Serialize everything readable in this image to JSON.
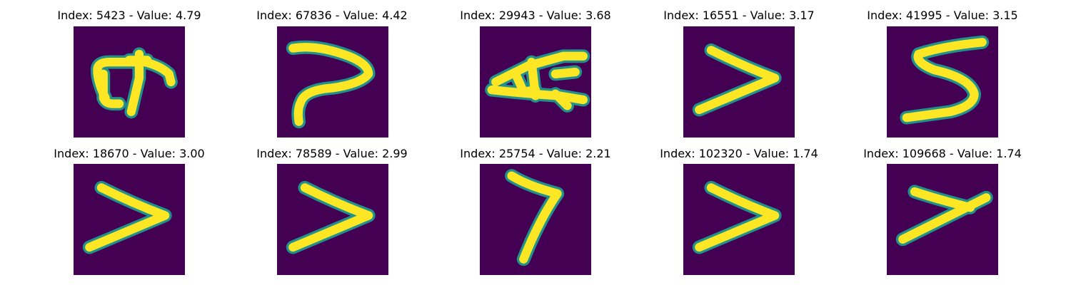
{
  "colors": {
    "background": "#440154",
    "stroke_mid": "#21918c",
    "stroke_core": "#fde725"
  },
  "panels": [
    {
      "title": "Index: 5423 - Value: 4.79",
      "glyph": "cursive-symbol"
    },
    {
      "title": "Index: 67836 - Value: 4.42",
      "glyph": "question-hook"
    },
    {
      "title": "Index: 29943 - Value: 3.68",
      "glyph": "scribble-symbol"
    },
    {
      "title": "Index: 16551 - Value: 3.17",
      "glyph": "chevron-right"
    },
    {
      "title": "Index: 41995 - Value: 3.15",
      "glyph": "digit-five-s"
    },
    {
      "title": "Index: 18670 - Value: 3.00",
      "glyph": "chevron-right"
    },
    {
      "title": "Index: 78589 - Value: 2.99",
      "glyph": "chevron-right"
    },
    {
      "title": "Index: 25754 - Value: 2.21",
      "glyph": "digit-seven"
    },
    {
      "title": "Index: 102320 - Value: 1.74",
      "glyph": "chevron-right"
    },
    {
      "title": "Index: 109668 - Value: 1.74",
      "glyph": "chevron-right-crossed"
    }
  ]
}
